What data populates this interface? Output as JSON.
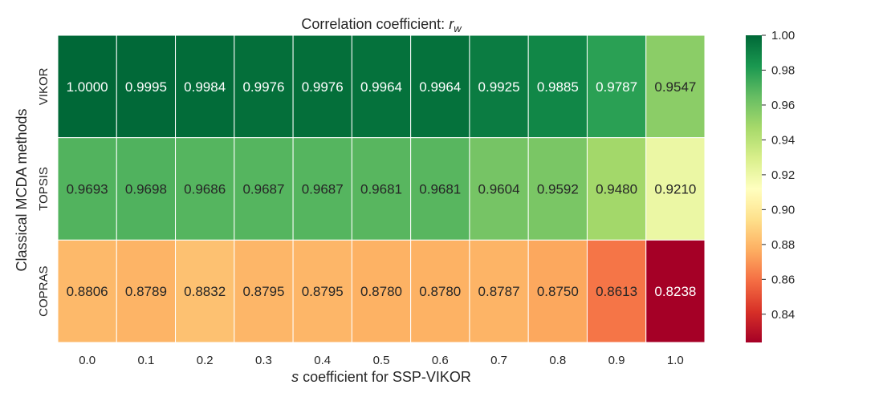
{
  "chart_data": {
    "type": "heatmap",
    "title_prefix": "Correlation coefficient: ",
    "title_symbol": "r",
    "title_subscript": "w",
    "xlabel_symbol": "s",
    "xlabel_rest": " coefficient for SSP-VIKOR",
    "ylabel": "Classical MCDA methods",
    "x_categories": [
      "0.0",
      "0.1",
      "0.2",
      "0.3",
      "0.4",
      "0.5",
      "0.6",
      "0.7",
      "0.8",
      "0.9",
      "1.0"
    ],
    "y_categories": [
      "VIKOR",
      "TOPSIS",
      "COPRAS"
    ],
    "values": [
      [
        1.0,
        0.9995,
        0.9984,
        0.9976,
        0.9976,
        0.9964,
        0.9964,
        0.9925,
        0.9885,
        0.9787,
        0.9547
      ],
      [
        0.9693,
        0.9698,
        0.9686,
        0.9687,
        0.9687,
        0.9681,
        0.9681,
        0.9604,
        0.9592,
        0.948,
        0.921
      ],
      [
        0.8806,
        0.8789,
        0.8832,
        0.8795,
        0.8795,
        0.878,
        0.878,
        0.8787,
        0.875,
        0.8613,
        0.8238
      ]
    ],
    "value_format_decimals": 4,
    "colormap": "RdYlGn",
    "color_range": [
      0.8238,
      1.0
    ],
    "colorbar_ticks": [
      "0.84",
      "0.86",
      "0.88",
      "0.90",
      "0.92",
      "0.94",
      "0.96",
      "0.98",
      "1.00"
    ]
  }
}
